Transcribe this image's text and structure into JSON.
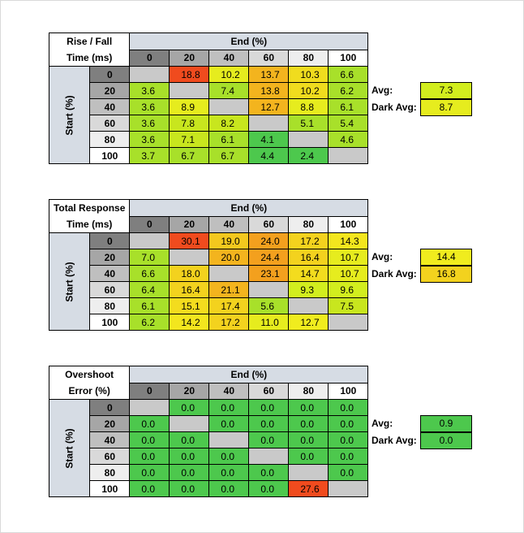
{
  "tables": [
    {
      "title_line1": "Rise / Fall",
      "title_line2": "Time (ms)",
      "end_label": "End (%)",
      "start_label": "Start (%)",
      "columns": [
        "0",
        "20",
        "40",
        "60",
        "80",
        "100"
      ],
      "rows": [
        {
          "label": "0",
          "cells": [
            "",
            "18.8",
            "10.2",
            "13.7",
            "10.3",
            "6.6"
          ]
        },
        {
          "label": "20",
          "cells": [
            "3.6",
            "",
            "7.4",
            "13.8",
            "10.2",
            "6.2"
          ]
        },
        {
          "label": "40",
          "cells": [
            "3.6",
            "8.9",
            "",
            "12.7",
            "8.8",
            "6.1"
          ]
        },
        {
          "label": "60",
          "cells": [
            "3.6",
            "7.8",
            "8.2",
            "",
            "5.1",
            "5.4"
          ]
        },
        {
          "label": "80",
          "cells": [
            "3.6",
            "7.1",
            "6.1",
            "4.1",
            "",
            "4.6"
          ]
        },
        {
          "label": "100",
          "cells": [
            "3.7",
            "6.7",
            "6.7",
            "4.4",
            "2.4",
            ""
          ]
        }
      ],
      "colors": [
        [
          "#c9c9c9",
          "#f04b1e",
          "#e6ec1e",
          "#f3b41e",
          "#f0dc1e",
          "#a8e02a"
        ],
        [
          "#a8e02a",
          "#c9c9c9",
          "#a8e02a",
          "#f3b41e",
          "#f0dc1e",
          "#a8e02a"
        ],
        [
          "#a8e02a",
          "#e6ec1e",
          "#c9c9c9",
          "#f3b41e",
          "#e6ec1e",
          "#a8e02a"
        ],
        [
          "#a8e02a",
          "#c8e61e",
          "#c8e61e",
          "#c9c9c9",
          "#a8e02a",
          "#a8e02a"
        ],
        [
          "#a8e02a",
          "#c8e61e",
          "#a8e02a",
          "#4dc84d",
          "#c9c9c9",
          "#a8e02a"
        ],
        [
          "#a8e02a",
          "#a8e02a",
          "#a8e02a",
          "#4dc84d",
          "#4dc84d",
          "#c9c9c9"
        ]
      ],
      "avg_label": "Avg:",
      "avg_value": "7.3",
      "avg_color": "#d2ee1e",
      "dark_avg_label": "Dark Avg:",
      "dark_avg_value": "8.7",
      "dark_avg_color": "#e6ec1e"
    },
    {
      "title_line1": "Total Response",
      "title_line2": "Time (ms)",
      "end_label": "End (%)",
      "start_label": "Start (%)",
      "columns": [
        "0",
        "20",
        "40",
        "60",
        "80",
        "100"
      ],
      "rows": [
        {
          "label": "0",
          "cells": [
            "",
            "30.1",
            "19.0",
            "24.0",
            "17.2",
            "14.3"
          ]
        },
        {
          "label": "20",
          "cells": [
            "7.0",
            "",
            "20.0",
            "24.4",
            "16.4",
            "10.7"
          ]
        },
        {
          "label": "40",
          "cells": [
            "6.6",
            "18.0",
            "",
            "23.1",
            "14.7",
            "10.7"
          ]
        },
        {
          "label": "60",
          "cells": [
            "6.4",
            "16.4",
            "21.1",
            "",
            "9.3",
            "9.6"
          ]
        },
        {
          "label": "80",
          "cells": [
            "6.1",
            "15.1",
            "17.4",
            "5.6",
            "",
            "7.5"
          ]
        },
        {
          "label": "100",
          "cells": [
            "6.2",
            "14.2",
            "17.2",
            "11.0",
            "12.7",
            ""
          ]
        }
      ],
      "colors": [
        [
          "#c9c9c9",
          "#f04b1e",
          "#f3c81e",
          "#f3a01e",
          "#f3d21e",
          "#f3e61e"
        ],
        [
          "#a8e02a",
          "#c9c9c9",
          "#f3b41e",
          "#f3a01e",
          "#f3d21e",
          "#e6ec1e"
        ],
        [
          "#a8e02a",
          "#f3d21e",
          "#c9c9c9",
          "#f3a01e",
          "#f3dc1e",
          "#e6ec1e"
        ],
        [
          "#a8e02a",
          "#f3d21e",
          "#f3b41e",
          "#c9c9c9",
          "#d2ee1e",
          "#d2ee1e"
        ],
        [
          "#a8e02a",
          "#f3dc1e",
          "#f3d21e",
          "#a8e02a",
          "#c9c9c9",
          "#c8e61e"
        ],
        [
          "#a8e02a",
          "#f3e61e",
          "#f3d21e",
          "#e6ec1e",
          "#f0ec1e",
          "#c9c9c9"
        ]
      ],
      "avg_label": "Avg:",
      "avg_value": "14.4",
      "avg_color": "#f0ec1e",
      "dark_avg_label": "Dark Avg:",
      "dark_avg_value": "16.8",
      "dark_avg_color": "#f3d21e"
    },
    {
      "title_line1": "Overshoot",
      "title_line2": "Error (%)",
      "end_label": "End (%)",
      "start_label": "Start (%)",
      "columns": [
        "0",
        "20",
        "40",
        "60",
        "80",
        "100"
      ],
      "rows": [
        {
          "label": "0",
          "cells": [
            "",
            "0.0",
            "0.0",
            "0.0",
            "0.0",
            "0.0"
          ]
        },
        {
          "label": "20",
          "cells": [
            "0.0",
            "",
            "0.0",
            "0.0",
            "0.0",
            "0.0"
          ]
        },
        {
          "label": "40",
          "cells": [
            "0.0",
            "0.0",
            "",
            "0.0",
            "0.0",
            "0.0"
          ]
        },
        {
          "label": "60",
          "cells": [
            "0.0",
            "0.0",
            "0.0",
            "",
            "0.0",
            "0.0"
          ]
        },
        {
          "label": "80",
          "cells": [
            "0.0",
            "0.0",
            "0.0",
            "0.0",
            "",
            "0.0"
          ]
        },
        {
          "label": "100",
          "cells": [
            "0.0",
            "0.0",
            "0.0",
            "0.0",
            "27.6",
            ""
          ]
        }
      ],
      "colors": [
        [
          "#c9c9c9",
          "#4dc84d",
          "#4dc84d",
          "#4dc84d",
          "#4dc84d",
          "#4dc84d"
        ],
        [
          "#4dc84d",
          "#c9c9c9",
          "#4dc84d",
          "#4dc84d",
          "#4dc84d",
          "#4dc84d"
        ],
        [
          "#4dc84d",
          "#4dc84d",
          "#c9c9c9",
          "#4dc84d",
          "#4dc84d",
          "#4dc84d"
        ],
        [
          "#4dc84d",
          "#4dc84d",
          "#4dc84d",
          "#c9c9c9",
          "#4dc84d",
          "#4dc84d"
        ],
        [
          "#4dc84d",
          "#4dc84d",
          "#4dc84d",
          "#4dc84d",
          "#c9c9c9",
          "#4dc84d"
        ],
        [
          "#4dc84d",
          "#4dc84d",
          "#4dc84d",
          "#4dc84d",
          "#f04b1e",
          "#c9c9c9"
        ]
      ],
      "avg_label": "Avg:",
      "avg_value": "0.9",
      "avg_color": "#4dc84d",
      "dark_avg_label": "Dark Avg:",
      "dark_avg_value": "0.0",
      "dark_avg_color": "#4dc84d"
    }
  ],
  "header_colors": {
    "col": [
      "#7f7f7f",
      "#a6a6a6",
      "#bfbfbf",
      "#d9d9d9",
      "#eeeeee",
      "#ffffff"
    ],
    "row": [
      "#7f7f7f",
      "#a6a6a6",
      "#bfbfbf",
      "#d9d9d9",
      "#eeeeee",
      "#ffffff"
    ]
  }
}
